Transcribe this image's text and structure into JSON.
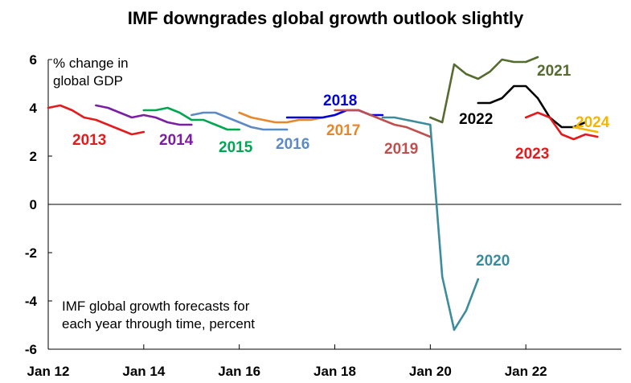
{
  "chart_data": {
    "type": "line",
    "title": "IMF downgrades global growth outlook slightly",
    "ylabel_lines": [
      "% change in",
      "global GDP"
    ],
    "annotation_lines": [
      "IMF global growth forecasts for",
      "each year through time, percent"
    ],
    "xlim": [
      "2012-01",
      "2024-01"
    ],
    "ylim": [
      -6,
      6
    ],
    "x_ticks": [
      "Jan 12",
      "Jan 14",
      "Jan 16",
      "Jan 18",
      "Jan 20",
      "Jan 22"
    ],
    "y_ticks": [
      "-6",
      "-4",
      "-2",
      "0",
      "2",
      "4",
      "6"
    ],
    "grid": false,
    "series": [
      {
        "name": "2013",
        "color": "#e41a1c",
        "x": [
          "2012-01",
          "2012-04",
          "2012-07",
          "2012-10",
          "2013-01",
          "2013-04",
          "2013-07",
          "2013-10",
          "2014-01"
        ],
        "y": [
          4.0,
          4.1,
          3.9,
          3.6,
          3.5,
          3.3,
          3.1,
          2.9,
          3.0
        ]
      },
      {
        "name": "2014",
        "color": "#7b1fa2",
        "x": [
          "2013-01",
          "2013-04",
          "2013-07",
          "2013-10",
          "2014-01",
          "2014-04",
          "2014-07",
          "2014-10",
          "2015-01"
        ],
        "y": [
          4.1,
          4.0,
          3.8,
          3.6,
          3.7,
          3.6,
          3.4,
          3.3,
          3.3
        ]
      },
      {
        "name": "2015",
        "color": "#00a651",
        "x": [
          "2014-01",
          "2014-04",
          "2014-07",
          "2014-10",
          "2015-01",
          "2015-04",
          "2015-07",
          "2015-10",
          "2016-01"
        ],
        "y": [
          3.9,
          3.9,
          4.0,
          3.8,
          3.5,
          3.5,
          3.3,
          3.1,
          3.1
        ]
      },
      {
        "name": "2016",
        "color": "#5b8ac6",
        "x": [
          "2015-01",
          "2015-04",
          "2015-07",
          "2015-10",
          "2016-01",
          "2016-04",
          "2016-07",
          "2016-10",
          "2017-01"
        ],
        "y": [
          3.7,
          3.8,
          3.8,
          3.6,
          3.4,
          3.2,
          3.1,
          3.1,
          3.1
        ]
      },
      {
        "name": "2017",
        "color": "#e8862a",
        "x": [
          "2016-01",
          "2016-04",
          "2016-07",
          "2016-10",
          "2017-01",
          "2017-04",
          "2017-07",
          "2017-10",
          "2018-01"
        ],
        "y": [
          3.8,
          3.6,
          3.5,
          3.4,
          3.4,
          3.5,
          3.5,
          3.6,
          3.7
        ]
      },
      {
        "name": "2018",
        "color": "#0000e0",
        "x": [
          "2017-01",
          "2017-04",
          "2017-07",
          "2017-10",
          "2018-01",
          "2018-04",
          "2018-07",
          "2018-10",
          "2019-01"
        ],
        "y": [
          3.6,
          3.6,
          3.6,
          3.6,
          3.7,
          3.9,
          3.9,
          3.7,
          3.7
        ]
      },
      {
        "name": "2019",
        "color": "#c0504d",
        "x": [
          "2018-01",
          "2018-04",
          "2018-07",
          "2018-10",
          "2019-01",
          "2019-04",
          "2019-07",
          "2019-10",
          "2020-01"
        ],
        "y": [
          3.9,
          3.9,
          3.9,
          3.7,
          3.5,
          3.3,
          3.2,
          3.0,
          2.8
        ]
      },
      {
        "name": "2020",
        "color": "#3c8c9c",
        "x": [
          "2019-01",
          "2019-04",
          "2019-07",
          "2019-10",
          "2020-01",
          "2020-04",
          "2020-07",
          "2020-10",
          "2021-01"
        ],
        "y": [
          3.6,
          3.6,
          3.5,
          3.4,
          3.3,
          -3.0,
          -5.2,
          -4.4,
          -3.1
        ]
      },
      {
        "name": "2021",
        "color": "#556b2f",
        "x": [
          "2020-01",
          "2020-04",
          "2020-07",
          "2020-10",
          "2021-01",
          "2021-04",
          "2021-07",
          "2021-10",
          "2022-01",
          "2022-04"
        ],
        "y": [
          3.6,
          3.4,
          5.8,
          5.4,
          5.2,
          5.5,
          6.0,
          5.9,
          5.9,
          6.1
        ]
      },
      {
        "name": "2022",
        "color": "#000000",
        "x": [
          "2021-01",
          "2021-04",
          "2021-07",
          "2021-10",
          "2022-01",
          "2022-04",
          "2022-07",
          "2022-10",
          "2023-01",
          "2023-04"
        ],
        "y": [
          4.2,
          4.2,
          4.4,
          4.9,
          4.9,
          4.4,
          3.6,
          3.2,
          3.2,
          3.4
        ]
      },
      {
        "name": "2023",
        "color": "#e41a1c",
        "x": [
          "2022-01",
          "2022-04",
          "2022-07",
          "2022-10",
          "2023-01",
          "2023-04",
          "2023-07"
        ],
        "y": [
          3.6,
          3.8,
          3.6,
          2.9,
          2.7,
          2.9,
          2.8
        ]
      },
      {
        "name": "2024",
        "color": "#f2b705",
        "x": [
          "2023-01",
          "2023-04",
          "2023-07"
        ],
        "y": [
          3.2,
          3.1,
          3.0
        ]
      }
    ]
  }
}
